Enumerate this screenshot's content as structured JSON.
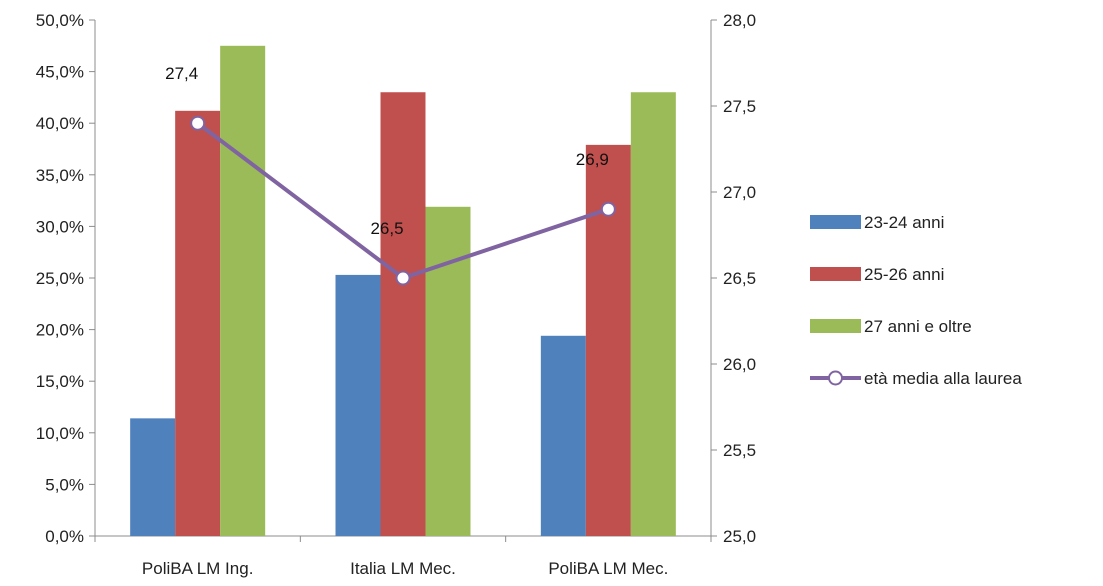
{
  "chart_data": {
    "type": "bar",
    "categories": [
      "PoliBA LM Ing.",
      "Italia LM Mec.",
      "PoliBA LM Mec."
    ],
    "series": [
      {
        "name": "23-24 anni",
        "type": "bar",
        "axis": "left",
        "color": "#4f81bd",
        "values": [
          11.4,
          25.3,
          19.4
        ]
      },
      {
        "name": "25-26 anni",
        "type": "bar",
        "axis": "left",
        "color": "#c0504d",
        "values": [
          41.2,
          43.0,
          37.9
        ]
      },
      {
        "name": "27 anni e oltre",
        "type": "bar",
        "axis": "left",
        "color": "#9bbb59",
        "values": [
          47.5,
          31.9,
          43.0
        ]
      },
      {
        "name": "età media alla laurea",
        "type": "line",
        "axis": "right",
        "color": "#8064a2",
        "values": [
          27.4,
          26.5,
          26.9
        ],
        "data_labels": [
          "27,4",
          "26,5",
          "26,9"
        ]
      }
    ],
    "y_left": {
      "min": 0,
      "max": 50,
      "ticks": [
        "0,0%",
        "5,0%",
        "10,0%",
        "15,0%",
        "20,0%",
        "25,0%",
        "30,0%",
        "35,0%",
        "40,0%",
        "45,0%",
        "50,0%"
      ]
    },
    "y_right": {
      "min": 25,
      "max": 28,
      "ticks": [
        "25,0",
        "25,5",
        "26,0",
        "26,5",
        "27,0",
        "27,5",
        "28,0"
      ]
    },
    "legend_position": "right",
    "grid": false
  }
}
